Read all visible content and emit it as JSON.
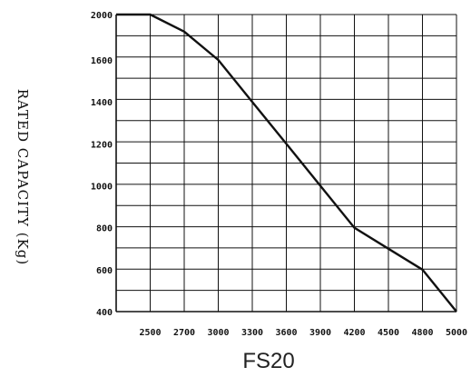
{
  "chart_data": {
    "type": "line",
    "caption": "FS20",
    "ylabel": "RATED CAPACITY (Kg)",
    "xlabel": "",
    "x_tick_labels": [
      "2500",
      "2700",
      "3000",
      "3300",
      "3600",
      "3900",
      "4200",
      "4500",
      "4800",
      "5000"
    ],
    "y_tick_labels": [
      "2000",
      "1600",
      "1400",
      "1200",
      "1000",
      "800",
      "600",
      "400"
    ],
    "x_ticks": [
      2500,
      2700,
      3000,
      3300,
      3600,
      3900,
      4200,
      4500,
      4800,
      5000
    ],
    "y_ticks": [
      2000,
      1600,
      1400,
      1200,
      1000,
      800,
      600,
      400
    ],
    "grid": true,
    "series": [
      {
        "x": [
          2300,
          2500,
          2700,
          3000,
          3300,
          3600,
          3900,
          4200,
          4500,
          4800,
          5000
        ],
        "y": [
          2000,
          2000,
          1850,
          1600,
          1400,
          1200,
          1000,
          800,
          700,
          600,
          400
        ]
      }
    ],
    "line_color": "#111111"
  }
}
